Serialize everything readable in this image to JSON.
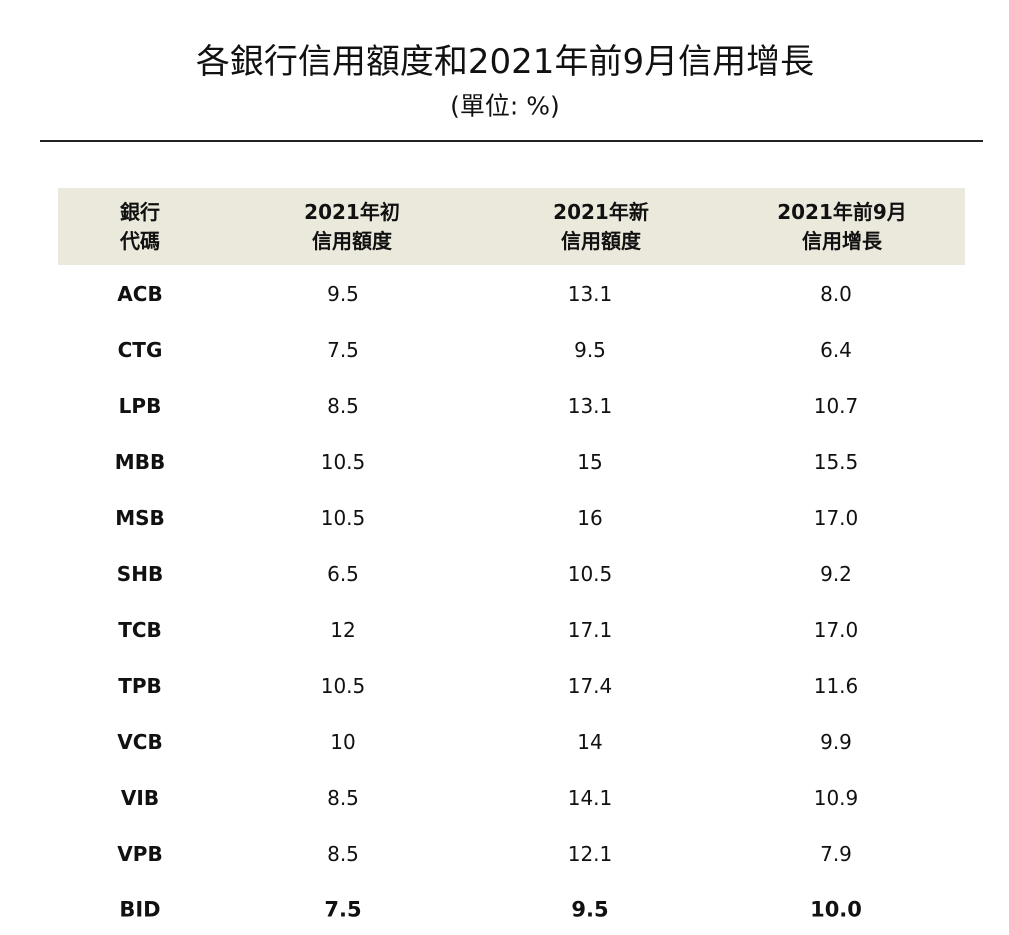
{
  "title": "各銀行信用額度和2021年前9月信用增長",
  "subtitle": "(單位: %)",
  "table": {
    "header": [
      [
        "銀行",
        "代碼"
      ],
      [
        "2021年初",
        "信用額度"
      ],
      [
        "2021年新",
        "信用額度"
      ],
      [
        "2021年前9月",
        "信用增長"
      ]
    ],
    "rows": [
      [
        "ACB",
        "9.5",
        "13.1",
        "8.0"
      ],
      [
        "CTG",
        "7.5",
        "9.5",
        "6.4"
      ],
      [
        "LPB",
        "8.5",
        "13.1",
        "10.7"
      ],
      [
        "MBB",
        "10.5",
        "15",
        "15.5"
      ],
      [
        "MSB",
        "10.5",
        "16",
        "17.0"
      ],
      [
        "SHB",
        "6.5",
        "10.5",
        "9.2"
      ],
      [
        "TCB",
        "12",
        "17.1",
        "17.0"
      ],
      [
        "TPB",
        "10.5",
        "17.4",
        "11.6"
      ],
      [
        "VCB",
        "10",
        "14",
        "9.9"
      ],
      [
        "VIB",
        "8.5",
        "14.1",
        "10.9"
      ],
      [
        "VPB",
        "8.5",
        "12.1",
        "7.9"
      ],
      [
        "BID",
        "7.5",
        "9.5",
        "10.0"
      ]
    ]
  }
}
